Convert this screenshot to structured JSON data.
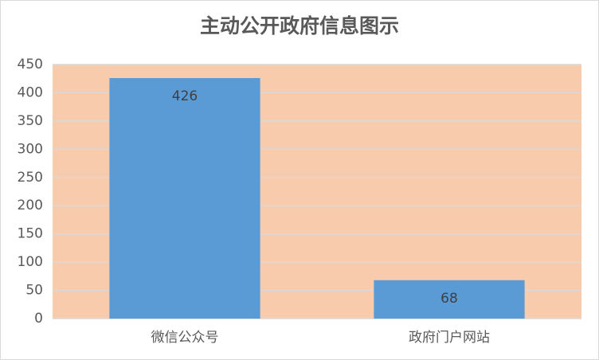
{
  "chart_data": {
    "type": "bar",
    "title": "主动公开政府信息图示",
    "categories": [
      "微信公众号",
      "政府门户网站"
    ],
    "values": [
      426,
      68
    ],
    "color": "#5b9bd5",
    "plot_background": "#f8cbad",
    "ylim": [
      0,
      450
    ],
    "yticks": [
      0,
      50,
      100,
      150,
      200,
      250,
      300,
      350,
      400,
      450
    ],
    "grid": true
  }
}
